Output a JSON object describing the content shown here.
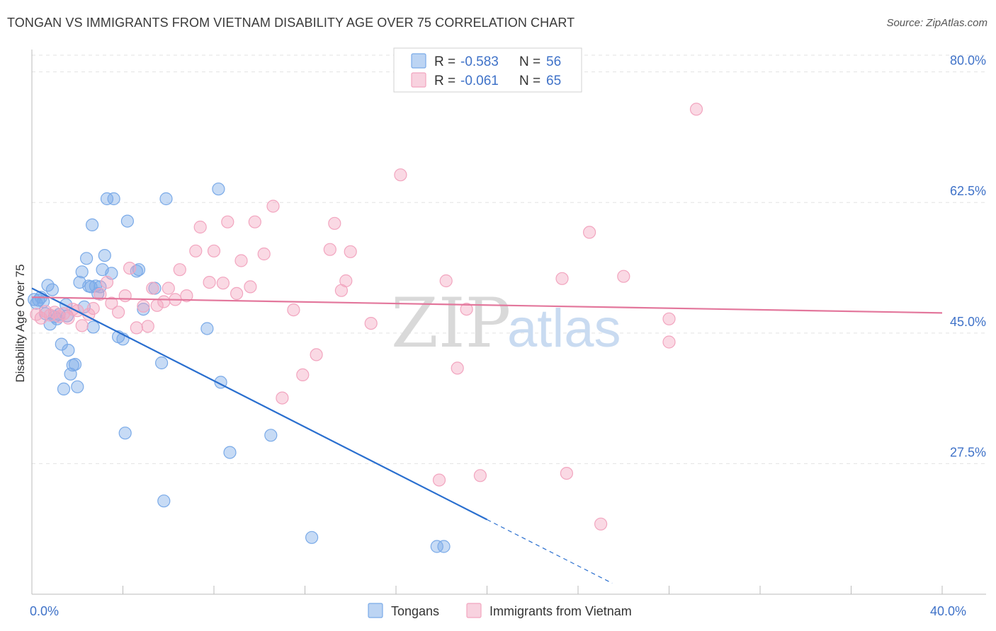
{
  "title": "TONGAN VS IMMIGRANTS FROM VIETNAM DISABILITY AGE OVER 75 CORRELATION CHART",
  "source": "Source: ZipAtlas.com",
  "watermark": {
    "zip": "ZIP",
    "atlas": "atlas"
  },
  "chart_data": {
    "type": "scatter",
    "ylabel": "Disability Age Over 75",
    "xlim": [
      0,
      40
    ],
    "ylim": [
      10,
      83
    ],
    "x_tick_labels": [
      {
        "value": 0,
        "label": "0.0%"
      },
      {
        "value": 40,
        "label": "40.0%"
      }
    ],
    "y_ticks": [
      {
        "value": 80,
        "label": "80.0%"
      },
      {
        "value": 62.5,
        "label": "62.5%"
      },
      {
        "value": 45,
        "label": "45.0%"
      },
      {
        "value": 27.5,
        "label": "27.5%"
      }
    ],
    "grid": true,
    "legend_position": "top-center",
    "legend": {
      "r_label": "R =",
      "n_label": "N ="
    },
    "series": [
      {
        "name": "Tongans",
        "color": "#7aaae8",
        "line_color": "#2a6fcf",
        "r": "-0.583",
        "n": "56",
        "trend": {
          "x0": 0,
          "y0": 51.0,
          "x1": 20,
          "y1": 20.0,
          "dash_to_x": 25.5
        },
        "points": [
          [
            0.1,
            49.5
          ],
          [
            0.2,
            49.0
          ],
          [
            0.3,
            49.4
          ],
          [
            0.4,
            49.8
          ],
          [
            0.5,
            49.2
          ],
          [
            0.6,
            47.6
          ],
          [
            0.7,
            51.4
          ],
          [
            0.8,
            46.2
          ],
          [
            0.9,
            50.8
          ],
          [
            1.0,
            47.2
          ],
          [
            1.1,
            46.9
          ],
          [
            1.2,
            47.5
          ],
          [
            1.3,
            43.5
          ],
          [
            1.4,
            37.5
          ],
          [
            1.5,
            48.8
          ],
          [
            1.6,
            42.7
          ],
          [
            1.7,
            39.5
          ],
          [
            1.8,
            40.7
          ],
          [
            1.9,
            40.8
          ],
          [
            2.0,
            37.8
          ],
          [
            2.1,
            51.8
          ],
          [
            2.2,
            53.2
          ],
          [
            2.3,
            48.5
          ],
          [
            2.4,
            55.0
          ],
          [
            2.5,
            51.3
          ],
          [
            2.6,
            51.2
          ],
          [
            2.65,
            59.5
          ],
          [
            2.7,
            45.8
          ],
          [
            2.8,
            51.3
          ],
          [
            2.9,
            50.3
          ],
          [
            3.1,
            53.5
          ],
          [
            3.2,
            55.4
          ],
          [
            3.3,
            63.0
          ],
          [
            3.5,
            53.0
          ],
          [
            3.6,
            63.0
          ],
          [
            3.8,
            44.5
          ],
          [
            4.0,
            44.2
          ],
          [
            4.1,
            31.6
          ],
          [
            4.2,
            60.0
          ],
          [
            4.6,
            53.3
          ],
          [
            4.7,
            53.5
          ],
          [
            4.9,
            48.2
          ],
          [
            5.4,
            51.0
          ],
          [
            5.7,
            41.0
          ],
          [
            5.8,
            22.5
          ],
          [
            5.9,
            63.0
          ],
          [
            7.7,
            45.6
          ],
          [
            8.2,
            64.3
          ],
          [
            8.3,
            38.4
          ],
          [
            8.7,
            29.0
          ],
          [
            10.5,
            31.3
          ],
          [
            12.3,
            17.6
          ],
          [
            17.8,
            16.4
          ],
          [
            18.1,
            16.4
          ],
          [
            3.0,
            51.2
          ],
          [
            1.55,
            47.3
          ]
        ]
      },
      {
        "name": "Immigrants from Vietnam",
        "color": "#f2a5bf",
        "line_color": "#e3779c",
        "r": "-0.061",
        "n": "65",
        "trend": {
          "x0": 0,
          "y0": 49.8,
          "x1": 40,
          "y1": 47.7
        },
        "points": [
          [
            0.2,
            47.5
          ],
          [
            0.4,
            47.0
          ],
          [
            0.6,
            47.9
          ],
          [
            0.8,
            47.4
          ],
          [
            1.0,
            47.8
          ],
          [
            1.2,
            47.2
          ],
          [
            1.4,
            47.6
          ],
          [
            1.6,
            47.0
          ],
          [
            1.8,
            48.2
          ],
          [
            2.0,
            48.0
          ],
          [
            2.2,
            46.0
          ],
          [
            2.5,
            47.5
          ],
          [
            2.7,
            48.3
          ],
          [
            3.0,
            50.2
          ],
          [
            3.3,
            51.8
          ],
          [
            3.5,
            49.0
          ],
          [
            3.8,
            47.8
          ],
          [
            4.1,
            50.0
          ],
          [
            4.3,
            53.7
          ],
          [
            4.6,
            45.7
          ],
          [
            4.9,
            48.6
          ],
          [
            5.1,
            45.9
          ],
          [
            5.3,
            51.0
          ],
          [
            5.5,
            48.7
          ],
          [
            5.8,
            49.2
          ],
          [
            6.0,
            51.0
          ],
          [
            6.3,
            49.5
          ],
          [
            6.5,
            53.5
          ],
          [
            6.8,
            50.0
          ],
          [
            7.2,
            56.0
          ],
          [
            7.4,
            59.2
          ],
          [
            7.8,
            51.8
          ],
          [
            8.0,
            56.0
          ],
          [
            8.4,
            51.7
          ],
          [
            8.6,
            59.9
          ],
          [
            9.0,
            50.3
          ],
          [
            9.2,
            54.7
          ],
          [
            9.6,
            51.2
          ],
          [
            9.8,
            59.9
          ],
          [
            10.2,
            55.6
          ],
          [
            10.6,
            62.0
          ],
          [
            11.0,
            36.3
          ],
          [
            11.5,
            48.1
          ],
          [
            11.9,
            39.4
          ],
          [
            12.5,
            42.1
          ],
          [
            13.1,
            56.2
          ],
          [
            13.3,
            59.7
          ],
          [
            13.6,
            50.7
          ],
          [
            13.8,
            52.0
          ],
          [
            14.0,
            55.9
          ],
          [
            14.9,
            46.3
          ],
          [
            16.2,
            66.2
          ],
          [
            17.9,
            25.3
          ],
          [
            18.2,
            52.0
          ],
          [
            18.7,
            40.3
          ],
          [
            19.1,
            48.2
          ],
          [
            19.7,
            25.9
          ],
          [
            23.3,
            52.3
          ],
          [
            23.5,
            26.2
          ],
          [
            24.5,
            58.5
          ],
          [
            25.0,
            19.4
          ],
          [
            26.0,
            52.6
          ],
          [
            28.0,
            46.9
          ],
          [
            28.0,
            43.8
          ],
          [
            29.2,
            75.0
          ]
        ]
      }
    ]
  }
}
